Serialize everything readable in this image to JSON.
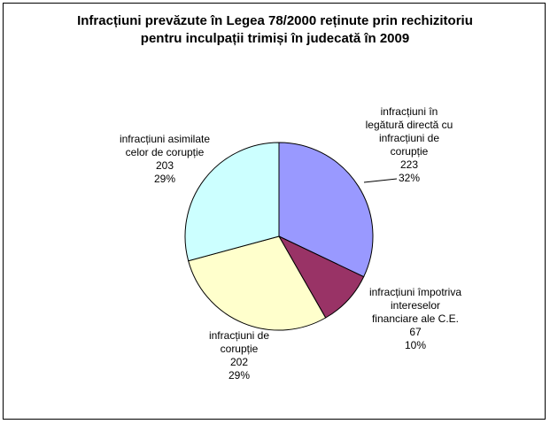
{
  "chart_data": {
    "type": "pie",
    "title_lines": [
      "Infracțiuni prevăzute în Legea 78/2000 reținute prin rechizitoriu",
      "pentru inculpații trimiși în judecată în 2009"
    ],
    "slices": [
      {
        "label_lines": [
          "infracțiuni în",
          "legătură directă cu",
          "infracțiuni de",
          "corupție"
        ],
        "value": 223,
        "percent": "32%",
        "color": "#9999ff"
      },
      {
        "label_lines": [
          "infracțiuni împotriva",
          "intereselor",
          "financiare ale C.E."
        ],
        "value": 67,
        "percent": "10%",
        "color": "#993366"
      },
      {
        "label_lines": [
          "infracțiuni de",
          "corupție"
        ],
        "value": 202,
        "percent": "29%",
        "color": "#ffffcc"
      },
      {
        "label_lines": [
          "infracțiuni asimilate",
          "celor de corupție"
        ],
        "value": 203,
        "percent": "29%",
        "color": "#ccffff"
      }
    ],
    "start_angle": "12 o'clock",
    "direction": "clockwise",
    "legend": "none"
  }
}
